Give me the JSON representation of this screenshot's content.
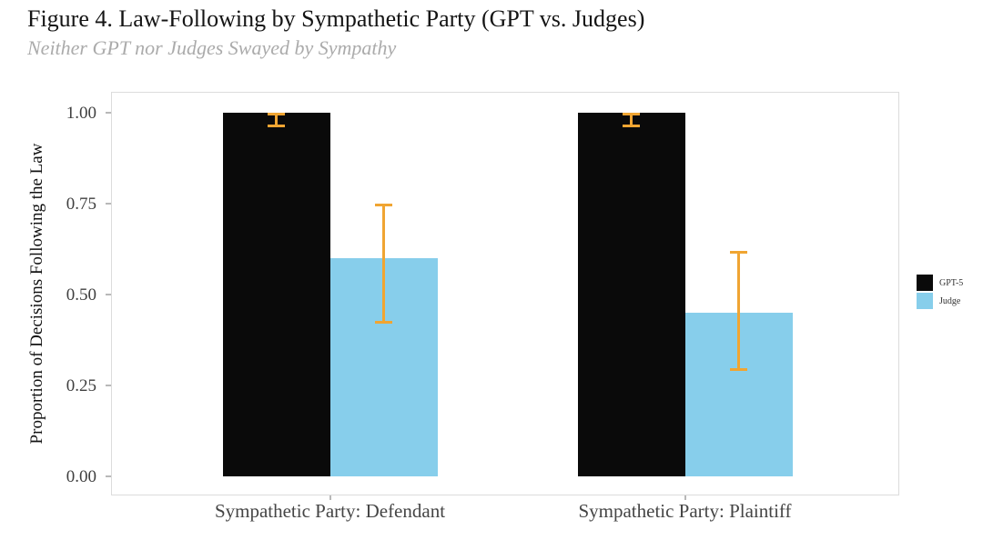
{
  "figure": {
    "title": "Figure 4. Law-Following by Sympathetic Party (GPT vs. Judges)",
    "subtitle": "Neither GPT nor Judges Swayed by Sympathy"
  },
  "chart_data": {
    "type": "bar",
    "title": "Figure 4. Law-Following by Sympathetic Party (GPT vs. Judges)",
    "subtitle": "Neither GPT nor Judges Swayed by Sympathy",
    "xlabel": "",
    "ylabel": "Proportion of Decisions Following the Law",
    "ylim": [
      0,
      1.05
    ],
    "yticks": [
      0.0,
      0.25,
      0.5,
      0.75,
      1.0
    ],
    "ytick_labels": [
      "0.00",
      "0.25",
      "0.50",
      "0.75",
      "1.00"
    ],
    "categories": [
      "Sympathetic Party: Defendant",
      "Sympathetic Party: Plaintiff"
    ],
    "series": [
      {
        "name": "GPT-5",
        "color": "#0a0a0a",
        "values": [
          1.0,
          1.0
        ],
        "ci_low": [
          0.96,
          0.96
        ],
        "ci_high": [
          1.0,
          1.0
        ]
      },
      {
        "name": "Judge",
        "color": "#87CEEB",
        "values": [
          0.6,
          0.45
        ],
        "ci_low": [
          0.42,
          0.29
        ],
        "ci_high": [
          0.75,
          0.62
        ]
      }
    ],
    "error_bar_color": "#F0A532",
    "grid": false,
    "legend_position": "right",
    "panel_border_color": "#dcdcdc"
  }
}
